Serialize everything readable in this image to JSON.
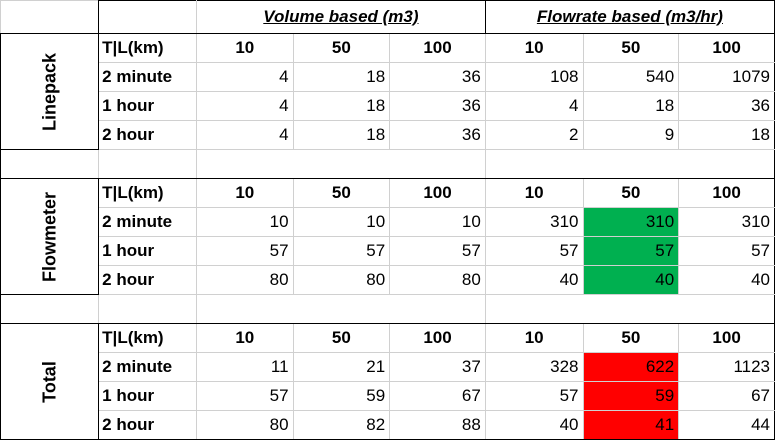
{
  "headers": {
    "volume": "Volume based (m3)",
    "flowrate": "Flowrate based (m3/hr)"
  },
  "colors": {
    "highlight_green": "#00b050",
    "highlight_red": "#ff0000"
  },
  "sections": [
    {
      "label": "Linepack",
      "col_header": [
        "T|L(km)",
        "10",
        "50",
        "100",
        "10",
        "50",
        "100"
      ],
      "rows": [
        [
          "2 minute",
          "4",
          "18",
          "36",
          "108",
          "540",
          "1079"
        ],
        [
          "1 hour",
          "4",
          "18",
          "36",
          "4",
          "18",
          "36"
        ],
        [
          "2 hour",
          "4",
          "18",
          "36",
          "2",
          "9",
          "18"
        ]
      ]
    },
    {
      "label": "Flowmeter",
      "col_header": [
        "T|L(km)",
        "10",
        "50",
        "100",
        "10",
        "50",
        "100"
      ],
      "rows": [
        [
          "2 minute",
          "10",
          "10",
          "10",
          "310",
          "310",
          "310"
        ],
        [
          "1 hour",
          "57",
          "57",
          "57",
          "57",
          "57",
          "57"
        ],
        [
          "2 hour",
          "80",
          "80",
          "80",
          "40",
          "40",
          "40"
        ]
      ]
    },
    {
      "label": "Total",
      "col_header": [
        "T|L(km)",
        "10",
        "50",
        "100",
        "10",
        "50",
        "100"
      ],
      "rows": [
        [
          "2 minute",
          "11",
          "21",
          "37",
          "328",
          "622",
          "1123"
        ],
        [
          "1 hour",
          "57",
          "59",
          "67",
          "57",
          "59",
          "67"
        ],
        [
          "2 hour",
          "80",
          "82",
          "88",
          "40",
          "41",
          "44"
        ]
      ]
    }
  ]
}
